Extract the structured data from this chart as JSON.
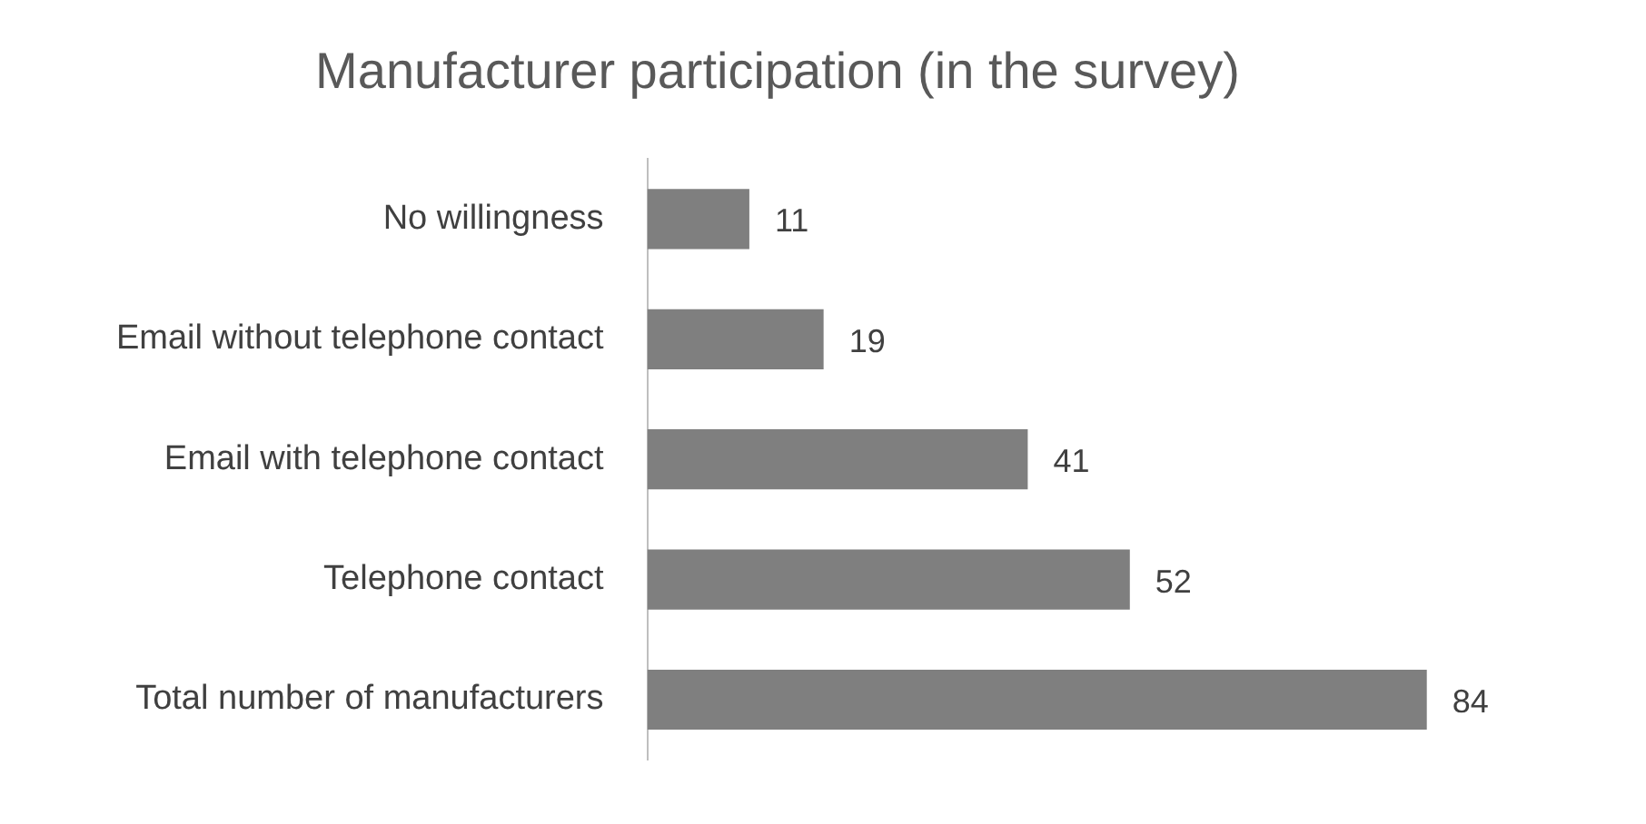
{
  "chart_data": {
    "type": "bar",
    "orientation": "horizontal",
    "title": "Manufacturer participation (in the survey)",
    "categories": [
      "No willingness",
      "Email without telephone contact",
      "Email with telephone contact",
      "Telephone contact",
      "Total number of manufacturers"
    ],
    "values": [
      11,
      19,
      41,
      52,
      84
    ],
    "color": "#7f7f7f",
    "data_labels": true,
    "legend": false
  }
}
